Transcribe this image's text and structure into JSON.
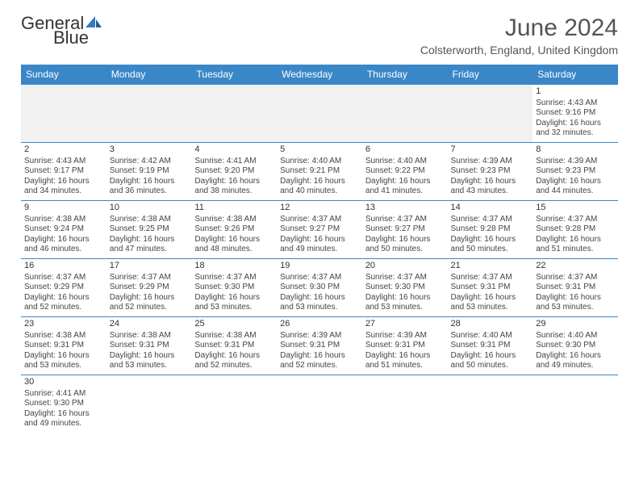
{
  "brand": {
    "name1": "General",
    "name2": "Blue"
  },
  "title": "June 2024",
  "location": "Colsterworth, England, United Kingdom",
  "colors": {
    "header_bg": "#3a87c7",
    "border": "#3a87c7",
    "logo_blue": "#2f7ec2"
  },
  "day_headers": [
    "Sunday",
    "Monday",
    "Tuesday",
    "Wednesday",
    "Thursday",
    "Friday",
    "Saturday"
  ],
  "weeks": [
    [
      null,
      null,
      null,
      null,
      null,
      null,
      {
        "d": "1",
        "sr": "Sunrise: 4:43 AM",
        "ss": "Sunset: 9:16 PM",
        "dl1": "Daylight: 16 hours",
        "dl2": "and 32 minutes."
      }
    ],
    [
      {
        "d": "2",
        "sr": "Sunrise: 4:43 AM",
        "ss": "Sunset: 9:17 PM",
        "dl1": "Daylight: 16 hours",
        "dl2": "and 34 minutes."
      },
      {
        "d": "3",
        "sr": "Sunrise: 4:42 AM",
        "ss": "Sunset: 9:19 PM",
        "dl1": "Daylight: 16 hours",
        "dl2": "and 36 minutes."
      },
      {
        "d": "4",
        "sr": "Sunrise: 4:41 AM",
        "ss": "Sunset: 9:20 PM",
        "dl1": "Daylight: 16 hours",
        "dl2": "and 38 minutes."
      },
      {
        "d": "5",
        "sr": "Sunrise: 4:40 AM",
        "ss": "Sunset: 9:21 PM",
        "dl1": "Daylight: 16 hours",
        "dl2": "and 40 minutes."
      },
      {
        "d": "6",
        "sr": "Sunrise: 4:40 AM",
        "ss": "Sunset: 9:22 PM",
        "dl1": "Daylight: 16 hours",
        "dl2": "and 41 minutes."
      },
      {
        "d": "7",
        "sr": "Sunrise: 4:39 AM",
        "ss": "Sunset: 9:23 PM",
        "dl1": "Daylight: 16 hours",
        "dl2": "and 43 minutes."
      },
      {
        "d": "8",
        "sr": "Sunrise: 4:39 AM",
        "ss": "Sunset: 9:23 PM",
        "dl1": "Daylight: 16 hours",
        "dl2": "and 44 minutes."
      }
    ],
    [
      {
        "d": "9",
        "sr": "Sunrise: 4:38 AM",
        "ss": "Sunset: 9:24 PM",
        "dl1": "Daylight: 16 hours",
        "dl2": "and 46 minutes."
      },
      {
        "d": "10",
        "sr": "Sunrise: 4:38 AM",
        "ss": "Sunset: 9:25 PM",
        "dl1": "Daylight: 16 hours",
        "dl2": "and 47 minutes."
      },
      {
        "d": "11",
        "sr": "Sunrise: 4:38 AM",
        "ss": "Sunset: 9:26 PM",
        "dl1": "Daylight: 16 hours",
        "dl2": "and 48 minutes."
      },
      {
        "d": "12",
        "sr": "Sunrise: 4:37 AM",
        "ss": "Sunset: 9:27 PM",
        "dl1": "Daylight: 16 hours",
        "dl2": "and 49 minutes."
      },
      {
        "d": "13",
        "sr": "Sunrise: 4:37 AM",
        "ss": "Sunset: 9:27 PM",
        "dl1": "Daylight: 16 hours",
        "dl2": "and 50 minutes."
      },
      {
        "d": "14",
        "sr": "Sunrise: 4:37 AM",
        "ss": "Sunset: 9:28 PM",
        "dl1": "Daylight: 16 hours",
        "dl2": "and 50 minutes."
      },
      {
        "d": "15",
        "sr": "Sunrise: 4:37 AM",
        "ss": "Sunset: 9:28 PM",
        "dl1": "Daylight: 16 hours",
        "dl2": "and 51 minutes."
      }
    ],
    [
      {
        "d": "16",
        "sr": "Sunrise: 4:37 AM",
        "ss": "Sunset: 9:29 PM",
        "dl1": "Daylight: 16 hours",
        "dl2": "and 52 minutes."
      },
      {
        "d": "17",
        "sr": "Sunrise: 4:37 AM",
        "ss": "Sunset: 9:29 PM",
        "dl1": "Daylight: 16 hours",
        "dl2": "and 52 minutes."
      },
      {
        "d": "18",
        "sr": "Sunrise: 4:37 AM",
        "ss": "Sunset: 9:30 PM",
        "dl1": "Daylight: 16 hours",
        "dl2": "and 53 minutes."
      },
      {
        "d": "19",
        "sr": "Sunrise: 4:37 AM",
        "ss": "Sunset: 9:30 PM",
        "dl1": "Daylight: 16 hours",
        "dl2": "and 53 minutes."
      },
      {
        "d": "20",
        "sr": "Sunrise: 4:37 AM",
        "ss": "Sunset: 9:30 PM",
        "dl1": "Daylight: 16 hours",
        "dl2": "and 53 minutes."
      },
      {
        "d": "21",
        "sr": "Sunrise: 4:37 AM",
        "ss": "Sunset: 9:31 PM",
        "dl1": "Daylight: 16 hours",
        "dl2": "and 53 minutes."
      },
      {
        "d": "22",
        "sr": "Sunrise: 4:37 AM",
        "ss": "Sunset: 9:31 PM",
        "dl1": "Daylight: 16 hours",
        "dl2": "and 53 minutes."
      }
    ],
    [
      {
        "d": "23",
        "sr": "Sunrise: 4:38 AM",
        "ss": "Sunset: 9:31 PM",
        "dl1": "Daylight: 16 hours",
        "dl2": "and 53 minutes."
      },
      {
        "d": "24",
        "sr": "Sunrise: 4:38 AM",
        "ss": "Sunset: 9:31 PM",
        "dl1": "Daylight: 16 hours",
        "dl2": "and 53 minutes."
      },
      {
        "d": "25",
        "sr": "Sunrise: 4:38 AM",
        "ss": "Sunset: 9:31 PM",
        "dl1": "Daylight: 16 hours",
        "dl2": "and 52 minutes."
      },
      {
        "d": "26",
        "sr": "Sunrise: 4:39 AM",
        "ss": "Sunset: 9:31 PM",
        "dl1": "Daylight: 16 hours",
        "dl2": "and 52 minutes."
      },
      {
        "d": "27",
        "sr": "Sunrise: 4:39 AM",
        "ss": "Sunset: 9:31 PM",
        "dl1": "Daylight: 16 hours",
        "dl2": "and 51 minutes."
      },
      {
        "d": "28",
        "sr": "Sunrise: 4:40 AM",
        "ss": "Sunset: 9:31 PM",
        "dl1": "Daylight: 16 hours",
        "dl2": "and 50 minutes."
      },
      {
        "d": "29",
        "sr": "Sunrise: 4:40 AM",
        "ss": "Sunset: 9:30 PM",
        "dl1": "Daylight: 16 hours",
        "dl2": "and 49 minutes."
      }
    ],
    [
      {
        "d": "30",
        "sr": "Sunrise: 4:41 AM",
        "ss": "Sunset: 9:30 PM",
        "dl1": "Daylight: 16 hours",
        "dl2": "and 49 minutes."
      },
      null,
      null,
      null,
      null,
      null,
      null
    ]
  ]
}
